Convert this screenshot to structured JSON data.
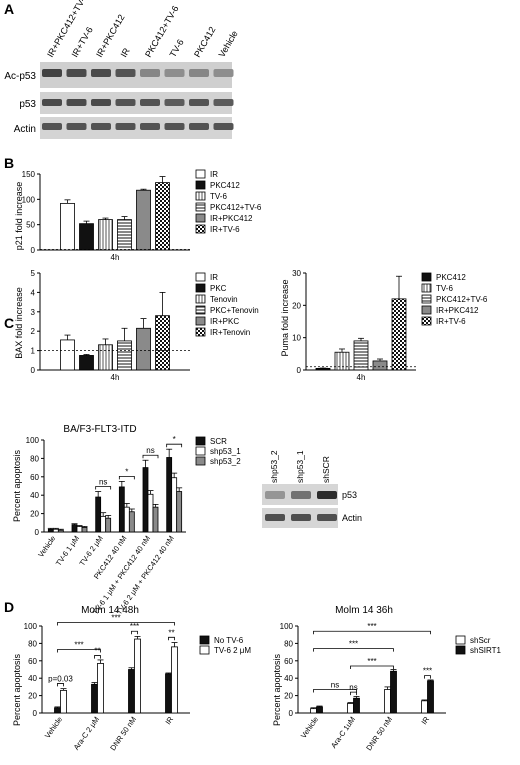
{
  "panels": {
    "A": {
      "letter": "A",
      "lanes": [
        "IR+PKC412+TV-6",
        "IR+TV-6",
        "IR+PKC412",
        "IR",
        "PKC412+TV-6",
        "TV-6",
        "PKC412",
        "Vehicle"
      ],
      "blots": [
        {
          "label": "Ac-p53",
          "intensity": [
            0.85,
            0.8,
            0.8,
            0.75,
            0.45,
            0.4,
            0.45,
            0.4
          ]
        },
        {
          "label": "p53",
          "intensity": [
            0.8,
            0.8,
            0.8,
            0.75,
            0.75,
            0.7,
            0.75,
            0.7
          ]
        },
        {
          "label": "Actin",
          "intensity": [
            0.75,
            0.75,
            0.75,
            0.75,
            0.75,
            0.75,
            0.75,
            0.75
          ]
        }
      ]
    },
    "B": {
      "letter": "B",
      "xtick": "4h",
      "p21": {
        "ylabel": "p21 fold increase",
        "ylim": [
          0,
          150
        ],
        "yticks": [
          0,
          50,
          100,
          150
        ],
        "series": [
          {
            "name": "IR",
            "value": 92,
            "err": 7,
            "fill": "white"
          },
          {
            "name": "PKC412",
            "value": 52,
            "err": 5,
            "fill": "black"
          },
          {
            "name": "TV-6",
            "value": 60,
            "err": 3,
            "fill": "vlines"
          },
          {
            "name": "PKC412+TV-6",
            "value": 60,
            "err": 6,
            "fill": "hlines"
          },
          {
            "name": "IR+PKC412",
            "value": 118,
            "err": 2,
            "fill": "gray"
          },
          {
            "name": "IR+TV-6",
            "value": 133,
            "err": 12,
            "fill": "check"
          }
        ]
      },
      "bax": {
        "ylabel": "BAX fold increase",
        "ylim": [
          0,
          5
        ],
        "yticks": [
          0,
          1,
          2,
          3,
          4,
          5
        ],
        "series": [
          {
            "name": "IR",
            "value": 1.55,
            "err": 0.25,
            "fill": "white"
          },
          {
            "name": "PKC",
            "value": 0.75,
            "err": 0.05,
            "fill": "black"
          },
          {
            "name": "Tenovin",
            "value": 1.3,
            "err": 0.3,
            "fill": "vlines"
          },
          {
            "name": "PKC+Tenovin",
            "value": 1.5,
            "err": 0.65,
            "fill": "hlines"
          },
          {
            "name": "IR+PKC",
            "value": 2.15,
            "err": 0.5,
            "fill": "gray"
          },
          {
            "name": "IR+Tenovin",
            "value": 2.8,
            "err": 1.2,
            "fill": "check"
          }
        ]
      },
      "puma": {
        "ylabel": "Puma fold increase",
        "ylim": [
          0,
          30
        ],
        "yticks": [
          0,
          10,
          20,
          30
        ],
        "series": [
          {
            "name": "PKC412",
            "value": 0.5,
            "err": 0.1,
            "fill": "black"
          },
          {
            "name": "TV-6",
            "value": 5.5,
            "err": 1.0,
            "fill": "vlines"
          },
          {
            "name": "PKC412+TV-6",
            "value": 9,
            "err": 0.8,
            "fill": "hlines"
          },
          {
            "name": "IR+PKC412",
            "value": 2.8,
            "err": 0.6,
            "fill": "gray"
          },
          {
            "name": "IR+TV-6",
            "value": 22,
            "err": 7,
            "fill": "check"
          }
        ]
      }
    },
    "C": {
      "letter": "C",
      "title": "BA/F3-FLT3-ITD",
      "ylabel": "Percent apoptosis",
      "ylim": [
        0,
        100
      ],
      "yticks": [
        0,
        20,
        40,
        60,
        80,
        100
      ],
      "categories": [
        "Vehicle",
        "TV-6 1 μM",
        "TV-6 2 μM",
        "PKC412 40 nM",
        "TV-6 1 μM + PKC412 40 nM",
        "TV-6 2 μM + PKC412 40 nM"
      ],
      "series": [
        {
          "name": "SCR",
          "values": [
            3,
            8,
            38,
            49,
            70,
            81
          ],
          "err": [
            1,
            1,
            6,
            6,
            8,
            9
          ],
          "fill": "black"
        },
        {
          "name": "shp53_1",
          "values": [
            3,
            6,
            17,
            27,
            41,
            59
          ],
          "err": [
            1,
            1,
            4,
            4,
            4,
            5
          ],
          "fill": "white"
        },
        {
          "name": "shp53_2",
          "values": [
            2,
            5,
            15,
            22,
            27,
            44
          ],
          "err": [
            1,
            1,
            3,
            3,
            3,
            4
          ],
          "fill": "gray"
        }
      ],
      "sig": [
        "ns",
        "*",
        "ns",
        "*",
        "ns",
        "*"
      ],
      "blot": {
        "lanes": [
          "shp53_2",
          "shp53_1",
          "shSCR"
        ],
        "rows": [
          {
            "label": "p53",
            "intensity": [
              0.35,
              0.55,
              0.95
            ]
          },
          {
            "label": "Actin",
            "intensity": [
              0.75,
              0.75,
              0.75
            ]
          }
        ]
      }
    },
    "D": {
      "letter": "D",
      "left": {
        "title": "Molm 14 48h",
        "ylabel": "Percent apoptosis",
        "ylim": [
          0,
          100
        ],
        "yticks": [
          0,
          20,
          40,
          60,
          80,
          100
        ],
        "categories": [
          "Vehicle",
          "Ara-C 2 μM",
          "DNR 50 nM",
          "IR"
        ],
        "series": [
          {
            "name": "No TV-6",
            "values": [
              6,
              33,
              50,
              45
            ],
            "err": [
              1,
              2,
              2,
              1
            ],
            "fill": "black"
          },
          {
            "name": "TV-6 2 μM",
            "values": [
              26,
              57,
              85,
              76
            ],
            "err": [
              2,
              4,
              3,
              5
            ],
            "fill": "white"
          }
        ],
        "annotations": [
          "p=0.03",
          "***",
          "**",
          "***",
          "**",
          "***"
        ]
      },
      "right": {
        "title": "Molm 14 36h",
        "ylabel": "Percent apoptosis",
        "ylim": [
          0,
          100
        ],
        "yticks": [
          0,
          20,
          40,
          60,
          80,
          100
        ],
        "categories": [
          "Vehicle",
          "Ara-C 1uM",
          "DNR 50 nM",
          "IR"
        ],
        "series": [
          {
            "name": "shScr",
            "values": [
              5,
              11,
              27,
              14
            ],
            "err": [
              1,
              1,
              3,
              1
            ],
            "fill": "white"
          },
          {
            "name": "shSIRT1",
            "values": [
              7,
              17,
              48,
              37
            ],
            "err": [
              1,
              2,
              2,
              1
            ],
            "fill": "black"
          }
        ],
        "annotations": [
          "ns",
          "ns",
          "***",
          "***",
          "***",
          "***"
        ]
      }
    }
  }
}
